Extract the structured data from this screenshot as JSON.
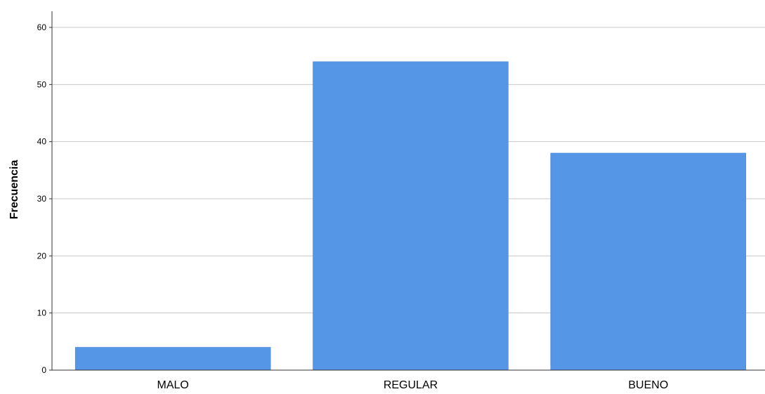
{
  "chart_data": {
    "type": "bar",
    "title": "",
    "xlabel": "",
    "ylabel": "Frecuencia",
    "categories": [
      "MALO",
      "REGULAR",
      "BUENO"
    ],
    "values": [
      4,
      54,
      38
    ],
    "ylim": [
      0,
      62
    ],
    "yticks": [
      0,
      10,
      20,
      30,
      40,
      50,
      60
    ],
    "grid": true,
    "legend": "none",
    "colors": {
      "bar": "#5596e6",
      "bar_edge": "#3d7fd6",
      "gridline": "#c8c8c8",
      "axis": "#333333",
      "text": "#000000"
    }
  }
}
